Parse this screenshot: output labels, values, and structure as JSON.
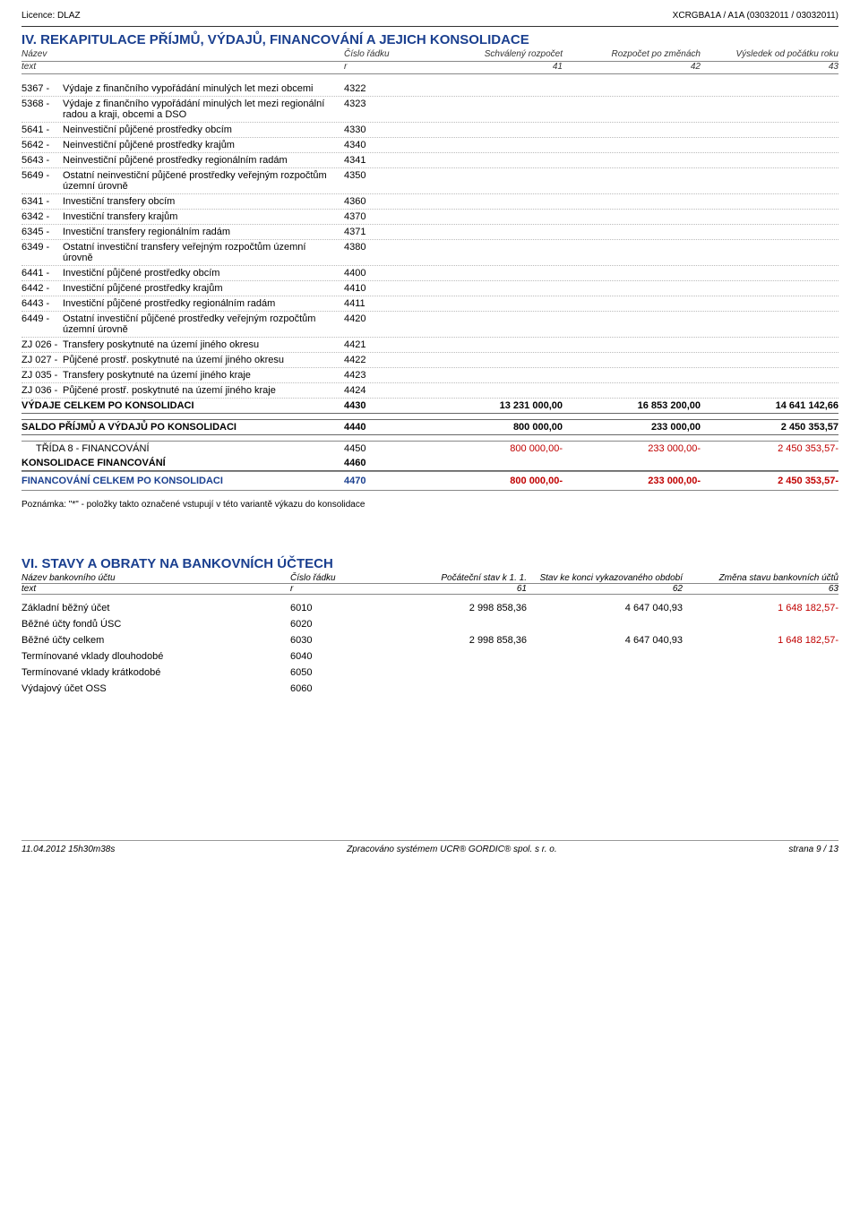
{
  "top": {
    "left": "Licence: DLAZ",
    "right": "XCRGBA1A / A1A (03032011 / 03032011)"
  },
  "section4": {
    "title": "IV. REKAPITULACE PŘÍJMŮ, VÝDAJŮ, FINANCOVÁNÍ A JEJICH KONSOLIDACE",
    "header1": {
      "name": "Název",
      "code": "Číslo řádku",
      "v1": "Schválený rozpočet",
      "v2": "Rozpočet po změnách",
      "v3": "Výsledek od počátku roku"
    },
    "header2": {
      "name": "text",
      "code": "r",
      "v1": "41",
      "v2": "42",
      "v3": "43"
    },
    "rows": [
      {
        "num": "5367 -",
        "label": "Výdaje z finančního vypořádání minulých let mezi obcemi",
        "code": "4322"
      },
      {
        "num": "5368 -",
        "label": "Výdaje z finančního vypořádání minulých let mezi regionální radou a kraji, obcemi a DSO",
        "code": "4323"
      },
      {
        "num": "5641 -",
        "label": "Neinvestiční půjčené prostředky obcím",
        "code": "4330"
      },
      {
        "num": "5642 -",
        "label": "Neinvestiční půjčené prostředky krajům",
        "code": "4340"
      },
      {
        "num": "5643 -",
        "label": "Neinvestiční půjčené prostředky regionálním radám",
        "code": "4341"
      },
      {
        "num": "5649 -",
        "label": "Ostatní neinvestiční půjčené prostředky veřejným rozpočtům územní úrovně",
        "code": "4350"
      },
      {
        "num": "6341 -",
        "label": "Investiční transfery obcím",
        "code": "4360"
      },
      {
        "num": "6342 -",
        "label": "Investiční transfery krajům",
        "code": "4370"
      },
      {
        "num": "6345 -",
        "label": "Investiční transfery regionálním radám",
        "code": "4371"
      },
      {
        "num": "6349 -",
        "label": "Ostatní investiční transfery veřejným rozpočtům územní úrovně",
        "code": "4380"
      },
      {
        "num": "6441 -",
        "label": "Investiční půjčené prostředky obcím",
        "code": "4400"
      },
      {
        "num": "6442 -",
        "label": "Investiční půjčené prostředky krajům",
        "code": "4410"
      },
      {
        "num": "6443 -",
        "label": "Investiční půjčené prostředky regionálním radám",
        "code": "4411"
      },
      {
        "num": "6449 -",
        "label": "Ostatní investiční půjčené prostředky veřejným rozpočtům územní úrovně",
        "code": "4420"
      },
      {
        "num": "ZJ 026 -",
        "label": "Transfery poskytnuté na území jiného okresu",
        "code": "4421"
      },
      {
        "num": "ZJ 027 -",
        "label": "Půjčené prostř. poskytnuté na území jiného okresu",
        "code": "4422"
      },
      {
        "num": "ZJ 035 -",
        "label": "Transfery poskytnuté na území jiného kraje",
        "code": "4423"
      },
      {
        "num": "ZJ 036 -",
        "label": "Půjčené prostř. poskytnuté na území jiného kraje",
        "code": "4424"
      }
    ],
    "total_row": {
      "label": "VÝDAJE CELKEM PO KONSOLIDACI",
      "code": "4430",
      "v1": "13 231 000,00",
      "v2": "16 853 200,00",
      "v3": "14 641 142,66"
    },
    "saldo_row": {
      "label": "SALDO PŘÍJMŮ A VÝDAJŮ PO KONSOLIDACI",
      "code": "4440",
      "v1": "800 000,00",
      "v2": "233 000,00",
      "v3": "2 450 353,57"
    },
    "trida8": {
      "label": "TŘÍDA 8 - FINANCOVÁNÍ",
      "code": "4450",
      "v1": "800 000,00-",
      "v2": "233 000,00-",
      "v3": "2 450 353,57-"
    },
    "konsolidace": {
      "label": "KONSOLIDACE FINANCOVÁNÍ",
      "code": "4460"
    },
    "fin_celkem": {
      "label": "FINANCOVÁNÍ CELKEM PO KONSOLIDACI",
      "code": "4470",
      "v1": "800 000,00-",
      "v2": "233 000,00-",
      "v3": "2 450 353,57-"
    },
    "note": "Poznámka: \"*\" - položky takto označené vstupují v této variantě výkazu do konsolidace"
  },
  "section6": {
    "title": "VI. STAVY A OBRATY NA BANKOVNÍCH ÚČTECH",
    "header1": {
      "name": "Název bankovního účtu",
      "code": "Číslo řádku",
      "v1": "Počáteční stav k 1. 1.",
      "v2": "Stav ke konci vykazovaného období",
      "v3": "Změna stavu bankovních účtů"
    },
    "header2": {
      "name": "text",
      "code": "r",
      "v1": "61",
      "v2": "62",
      "v3": "63"
    },
    "rows": [
      {
        "label": "Základní běžný účet",
        "code": "6010",
        "v1": "2 998 858,36",
        "v2": "4 647 040,93",
        "v3": "1 648 182,57-",
        "v3red": true
      },
      {
        "label": "Běžné účty fondů ÚSC",
        "code": "6020"
      },
      {
        "label": "Běžné účty celkem",
        "code": "6030",
        "v1": "2 998 858,36",
        "v2": "4 647 040,93",
        "v3": "1 648 182,57-",
        "v3red": true
      },
      {
        "label": "Termínované vklady dlouhodobé",
        "code": "6040"
      },
      {
        "label": "Termínované vklady krátkodobé",
        "code": "6050"
      },
      {
        "label": "Výdajový účet OSS",
        "code": "6060"
      }
    ]
  },
  "footer": {
    "left": "11.04.2012 15h30m38s",
    "center": "Zpracováno systémem UCR® GORDIC® spol. s r. o.",
    "right": "strana 9 / 13"
  }
}
